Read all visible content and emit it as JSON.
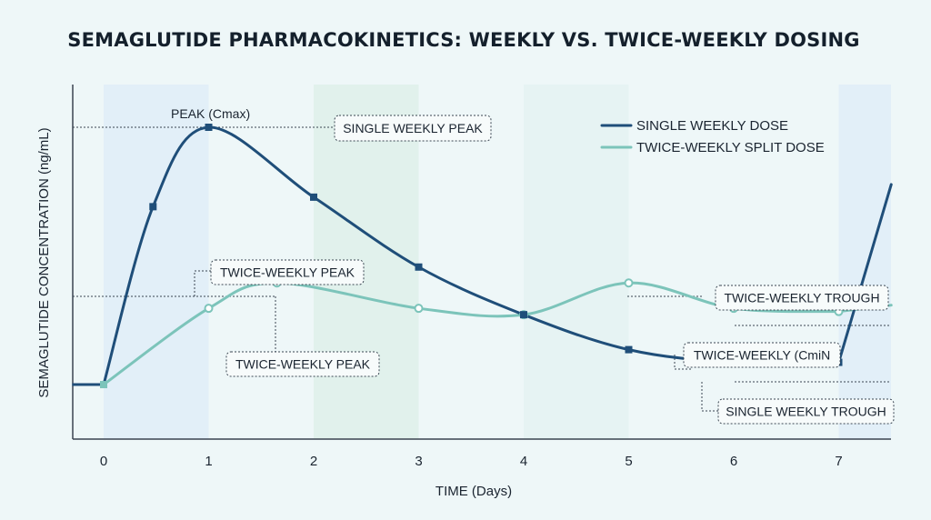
{
  "chart_data": {
    "type": "line",
    "title": "SEMAGLUTIDE PHARMACOKINETICS: WEEKLY VS. TWICE-WEEKLY DOSING",
    "xlabel": "TIME (Days)",
    "ylabel": "SEMAGLUTIDE CONCENTRATION (ng/mL)",
    "xlim": [
      -0.3,
      7.5
    ],
    "ylim": [
      0,
      100
    ],
    "x_ticks": [
      "0",
      "1",
      "2",
      "3",
      "4",
      "5",
      "6",
      "7"
    ],
    "grid": false,
    "legend_position": "top-right",
    "series": [
      {
        "name": "SINGLE WEEKLY DOSE",
        "color": "#1f4e79",
        "x": [
          -0.3,
          0,
          0.47,
          1,
          2,
          3,
          4,
          5,
          6,
          7,
          7.5
        ],
        "y": [
          8,
          8,
          64,
          89,
          67,
          45,
          30,
          19,
          15,
          15,
          71
        ]
      },
      {
        "name": "TWICE-WEEKLY SPLIT DOSE",
        "color": "#7cc4ba",
        "x": [
          0,
          1,
          1.65,
          3,
          4,
          5,
          6,
          7,
          7.5
        ],
        "y": [
          8,
          32,
          40,
          32,
          30,
          40,
          32,
          31,
          33
        ]
      }
    ],
    "annotations": [
      {
        "text": "PEAK (Cmax)",
        "boxed": false
      },
      {
        "text": "SINGLE WEEKLY PEAK",
        "boxed": true
      },
      {
        "text": "TWICE-WEEKLY PEAK",
        "boxed": true
      },
      {
        "text": "TWICE-WEEKLY PEAK",
        "boxed": true
      },
      {
        "text": "TWICE-WEEKLY TROUGH",
        "boxed": true
      },
      {
        "text": "TWICE-WEEKLY (CmiN",
        "boxed": true
      },
      {
        "text": "SINGLE WEEKLY TROUGH",
        "boxed": true
      }
    ],
    "shaded_day_bands": [
      [
        0,
        1
      ],
      [
        2,
        3
      ],
      [
        4,
        5
      ],
      [
        7,
        7.5
      ]
    ],
    "colors": {
      "background": "#eef7f8",
      "band_light": "#e2eff8",
      "band_mint": "#e1f1ec",
      "band_pale": "#e6f3f3"
    }
  }
}
